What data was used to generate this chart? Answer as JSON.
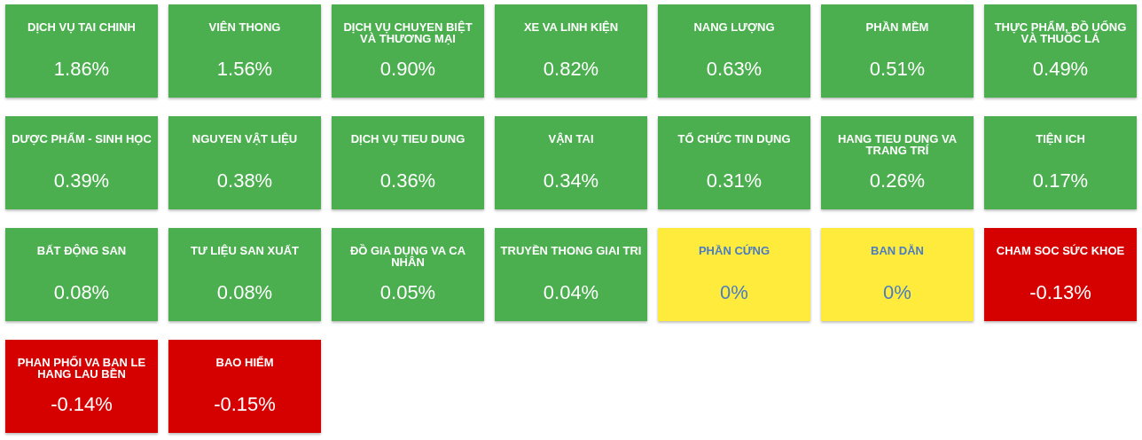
{
  "chart_data": {
    "type": "other",
    "categories": [
      "DỊCH VỤ TAI CHINH",
      "VIÊN THONG",
      "DỊCH VỤ CHUYEN BIỆT VÀ THƯƠNG MẠI",
      "XE VA LINH KIỆN",
      "NANG LƯỢNG",
      "PHẦN MỀM",
      "THỰC PHẨM, ĐỒ UỐNG VÀ THUỐC LÁ",
      "DƯỢC PHẨM - SINH HỌC",
      "NGUYEN VẬT LIỆU",
      "DỊCH VỤ TIEU DUNG",
      "VẬN TAI",
      "TỔ CHỨC TIN DỤNG",
      "HANG TIEU DUNG VA TRANG TRÍ",
      "TIỆN ICH",
      "BẤT ĐỘNG SAN",
      "TƯ LIỆU SAN XUẤT",
      "ĐỒ GIA DỤNG VA CA NHÂN",
      "TRUYỀN THONG GIAI TRI",
      "PHẦN CỨNG",
      "BAN DẪN",
      "CHAM SOC SỨC KHOE",
      "PHAN PHỐI VA BAN LE HANG LAU BỀN",
      "BAO HIỂM"
    ],
    "values": [
      1.86,
      1.56,
      0.9,
      0.82,
      0.63,
      0.51,
      0.49,
      0.39,
      0.38,
      0.36,
      0.34,
      0.31,
      0.26,
      0.17,
      0.08,
      0.08,
      0.05,
      0.04,
      0,
      0,
      -0.13,
      -0.14,
      -0.15
    ],
    "value_labels": [
      "1.86%",
      "1.56%",
      "0.90%",
      "0.82%",
      "0.63%",
      "0.51%",
      "0.49%",
      "0.39%",
      "0.38%",
      "0.36%",
      "0.34%",
      "0.31%",
      "0.26%",
      "0.17%",
      "0.08%",
      "0.08%",
      "0.05%",
      "0.04%",
      "0%",
      "0%",
      "-0.13%",
      "-0.14%",
      "-0.15%"
    ],
    "colors": [
      "#4caf50",
      "#4caf50",
      "#4caf50",
      "#4caf50",
      "#4caf50",
      "#4caf50",
      "#4caf50",
      "#4caf50",
      "#4caf50",
      "#4caf50",
      "#4caf50",
      "#4caf50",
      "#4caf50",
      "#4caf50",
      "#4caf50",
      "#4caf50",
      "#4caf50",
      "#4caf50",
      "#ffeb3b",
      "#ffeb3b",
      "#d50000",
      "#d50000",
      "#d50000"
    ]
  }
}
